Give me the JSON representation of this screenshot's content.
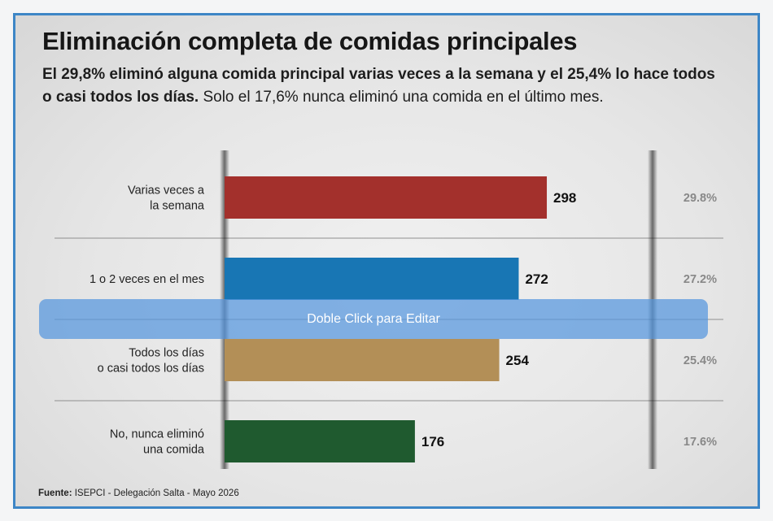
{
  "title": "Eliminación completa de comidas principales",
  "subtitle": {
    "bold_1": "El 29,8% eliminó alguna comida principal varias veces a la semana y el 25,4% lo hace todos o casi todos los días.",
    "rest": " Solo el 17,6% nunca eliminó una comida en el último mes."
  },
  "source": {
    "label": "Fuente:",
    "text": " ISEPCI - Delegación Salta - Mayo 2026"
  },
  "overlay": {
    "label": "Doble Click para Editar"
  },
  "colors": {
    "frame_border": "#3d86c6",
    "overlay": "#5496de",
    "divider": "#8f8f8f"
  },
  "chart_data": {
    "type": "bar",
    "orientation": "horizontal",
    "categories": [
      [
        "Varias veces a",
        "la semana"
      ],
      [
        "1 o 2 veces en el mes"
      ],
      [
        "Todos los días",
        "o casi todos los días"
      ],
      [
        "No, nunca eliminó",
        "una comida"
      ]
    ],
    "values": [
      298,
      272,
      254,
      176
    ],
    "value_labels": [
      "298",
      "272",
      "254",
      "176"
    ],
    "percent_labels": [
      "29.8%",
      "27.2%",
      "25.4%",
      "17.6%"
    ],
    "colors": [
      "#a3302c",
      "#1876b4",
      "#b38f57",
      "#1f5a2f"
    ],
    "xlim": [
      0,
      380
    ],
    "grid": false
  }
}
